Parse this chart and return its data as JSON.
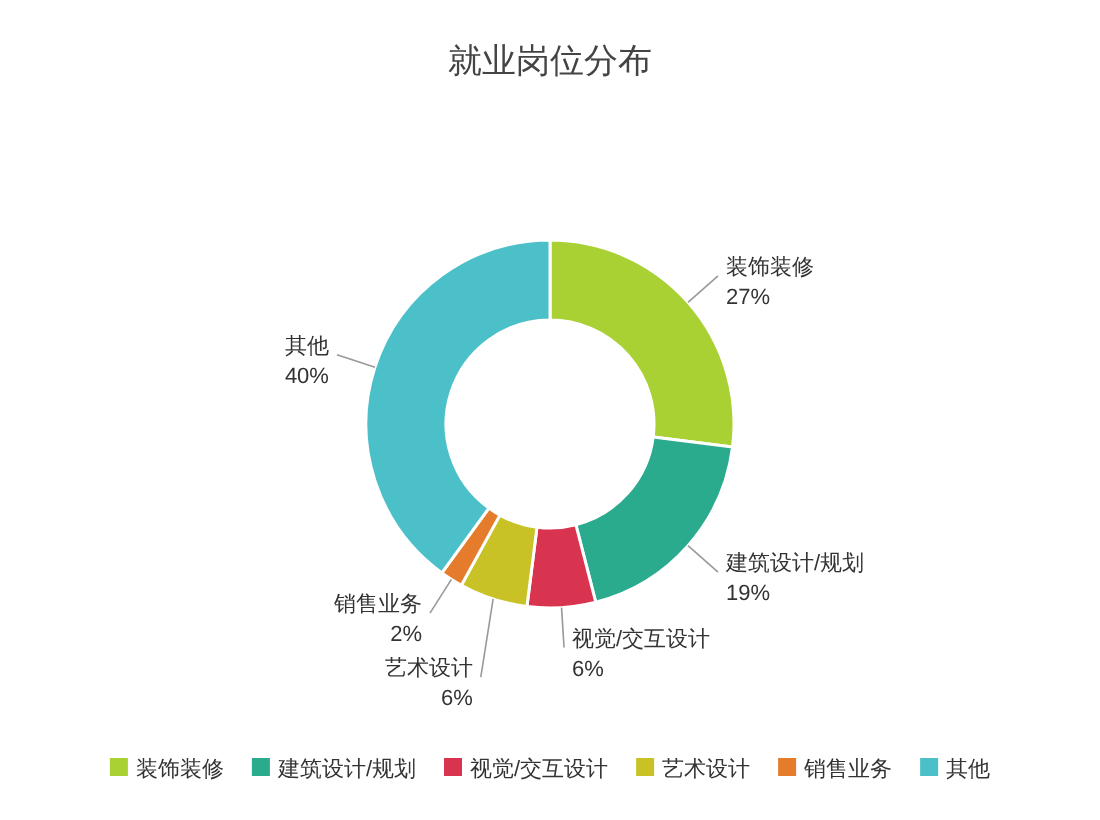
{
  "chart_data": {
    "type": "donut",
    "title": "就业岗位分布",
    "categories": [
      "装饰装修",
      "建筑设计/规划",
      "视觉/交互设计",
      "艺术设计",
      "销售业务",
      "其他"
    ],
    "values": [
      27,
      19,
      6,
      6,
      2,
      40
    ],
    "colors": [
      "#a9d134",
      "#2bab8d",
      "#d9344f",
      "#c8c227",
      "#e57c2b",
      "#4cc0c8"
    ],
    "value_labels": [
      "27%",
      "19%",
      "6%",
      "6%",
      "2%",
      "40%"
    ],
    "legend": "bottom"
  }
}
